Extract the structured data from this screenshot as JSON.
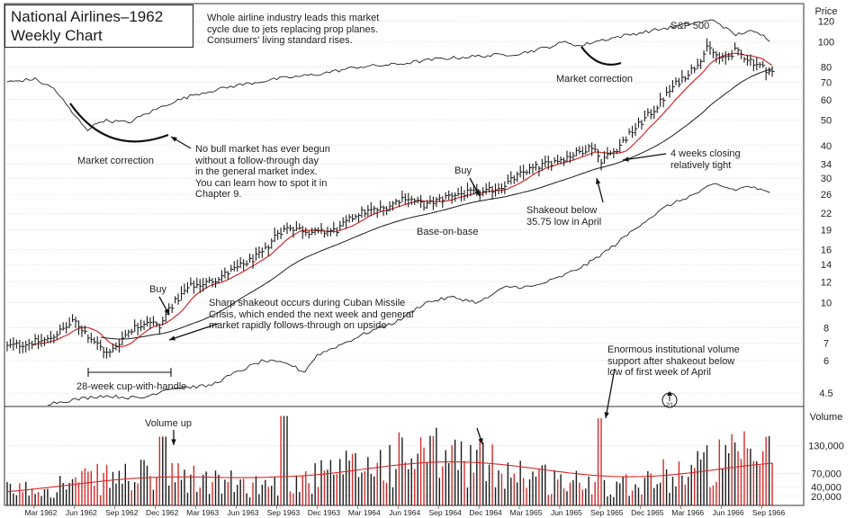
{
  "header": {
    "title_line1": "National Airlines–1962",
    "title_line2": "Weekly Chart"
  },
  "annotations": {
    "industry_note": [
      "Whole airline industry leads this market",
      "cycle due to jets replacing prop planes.",
      "Consumers' living standard rises."
    ],
    "sp500_label": "S&P 500",
    "market_correction_right": "Market correction",
    "market_correction_left": "Market correction",
    "follow_through_note": [
      "No bull market has ever begun",
      "without a follow-through day",
      "in the general market index.",
      "You can learn how to spot it in",
      "Chapter 9."
    ],
    "buy_1": "Buy",
    "buy_2": "Buy",
    "cuban_crisis_note": [
      "Sharp shakeout occurs during Cuban Missile",
      "Crisis, which ended the next week and general",
      "market rapidly follows-through on upside"
    ],
    "cup_with_handle": "28-week cup-with-handle",
    "base_on_base": "Base-on-base",
    "shakeout_note": [
      "Shakeout below",
      "35.75 low in April"
    ],
    "tight_note": [
      "4 weeks closing",
      "relatively tight"
    ],
    "volume_note": [
      "Enormous institutional volume",
      "support after shakeout below",
      "low of first week of April"
    ],
    "volume_up": "Volume up",
    "split_marker": "2/1"
  },
  "colors": {
    "price_bar": "#1a1a1a",
    "moving_avg_short": "#d42a2a",
    "moving_avg_long": "#1a1a1a",
    "volume_up": "#1a1a1a",
    "volume_down": "#d42a2a",
    "grid": "#9a9a9a"
  },
  "chart_data": {
    "type": "ohlc-with-volume",
    "title": "National Airlines–1962 Weekly Chart",
    "price_axis": {
      "label": "Price",
      "scale": "log",
      "range": [
        4,
        140
      ],
      "ticks": [
        120,
        100,
        80,
        70,
        60,
        50,
        40,
        34,
        30,
        26,
        22,
        19,
        16,
        14,
        12,
        10,
        8,
        7,
        6,
        4.5
      ]
    },
    "volume_axis": {
      "label": "Volume",
      "range": [
        0,
        200000
      ],
      "ticks": [
        130000,
        70000,
        40000,
        20000
      ],
      "tick_labels": [
        "130,000",
        "70,000",
        "40,000",
        "20,000"
      ]
    },
    "time_axis": {
      "range": [
        "Jan 1962",
        "Oct 1966"
      ],
      "ticks": [
        "Mar 1962",
        "Jun 1962",
        "Sep 1962",
        "Dec 1962",
        "Mar 1963",
        "Jun 1963",
        "Sep 1963",
        "Dec 1963",
        "Mar 1964",
        "Jun 1964",
        "Sep 1964",
        "Dec 1964",
        "Mar 1965",
        "Jun 1965",
        "Sep 1965",
        "Dec 1965",
        "Mar 1966",
        "Jun 1966",
        "Sep 1966"
      ]
    },
    "price_anchors": [
      {
        "month": 0,
        "price": 6.8
      },
      {
        "month": 3,
        "price": 7.2
      },
      {
        "month": 5,
        "price": 8.5
      },
      {
        "month": 6,
        "price": 7.5
      },
      {
        "month": 7.5,
        "price": 6.3
      },
      {
        "month": 9,
        "price": 7.8
      },
      {
        "month": 10.5,
        "price": 8.6
      },
      {
        "month": 11.3,
        "price": 8.0
      },
      {
        "month": 12,
        "price": 9.5
      },
      {
        "month": 13.5,
        "price": 11.5
      },
      {
        "month": 15,
        "price": 12.0
      },
      {
        "month": 17,
        "price": 13.5
      },
      {
        "month": 19,
        "price": 15.5
      },
      {
        "month": 20,
        "price": 18.5
      },
      {
        "month": 21,
        "price": 19.5
      },
      {
        "month": 23,
        "price": 18.5
      },
      {
        "month": 24.5,
        "price": 19.0
      },
      {
        "month": 26,
        "price": 22.0
      },
      {
        "month": 28,
        "price": 23.0
      },
      {
        "month": 29.5,
        "price": 25.5
      },
      {
        "month": 31,
        "price": 23.5
      },
      {
        "month": 33,
        "price": 26.0
      },
      {
        "month": 35.5,
        "price": 26.5
      },
      {
        "month": 37,
        "price": 28.5
      },
      {
        "month": 38.5,
        "price": 32.0
      },
      {
        "month": 40,
        "price": 34.0
      },
      {
        "month": 42,
        "price": 37.0
      },
      {
        "month": 43.5,
        "price": 40.0
      },
      {
        "month": 44,
        "price": 35.0
      },
      {
        "month": 45,
        "price": 38.0
      },
      {
        "month": 46.5,
        "price": 46.0
      },
      {
        "month": 48,
        "price": 55.0
      },
      {
        "month": 49.5,
        "price": 68.0
      },
      {
        "month": 51,
        "price": 80.0
      },
      {
        "month": 52,
        "price": 95.0
      },
      {
        "month": 53,
        "price": 85.0
      },
      {
        "month": 54,
        "price": 92.0
      },
      {
        "month": 55,
        "price": 86.0
      },
      {
        "month": 56,
        "price": 80.0
      },
      {
        "month": 56.8,
        "price": 76.0
      }
    ],
    "sp500_anchors": [
      {
        "month": 0,
        "price": 70
      },
      {
        "month": 2,
        "price": 72
      },
      {
        "month": 3.5,
        "price": 66
      },
      {
        "month": 5,
        "price": 52
      },
      {
        "month": 6,
        "price": 46
      },
      {
        "month": 7,
        "price": 50
      },
      {
        "month": 9,
        "price": 49
      },
      {
        "month": 10,
        "price": 52
      },
      {
        "month": 12,
        "price": 58
      },
      {
        "month": 14,
        "price": 63
      },
      {
        "month": 17,
        "price": 68
      },
      {
        "month": 20,
        "price": 72
      },
      {
        "month": 23,
        "price": 75
      },
      {
        "month": 26,
        "price": 80
      },
      {
        "month": 29,
        "price": 82
      },
      {
        "month": 32,
        "price": 86
      },
      {
        "month": 35,
        "price": 88
      },
      {
        "month": 38,
        "price": 90
      },
      {
        "month": 40,
        "price": 95
      },
      {
        "month": 41.5,
        "price": 100
      },
      {
        "month": 42.5,
        "price": 96
      },
      {
        "month": 43.5,
        "price": 100
      },
      {
        "month": 46,
        "price": 106
      },
      {
        "month": 49,
        "price": 113
      },
      {
        "month": 51,
        "price": 118
      },
      {
        "month": 52.5,
        "price": 121
      },
      {
        "month": 54,
        "price": 106
      },
      {
        "month": 55,
        "price": 110
      },
      {
        "month": 56,
        "price": 106
      },
      {
        "month": 56.8,
        "price": 100
      }
    ],
    "relative_strength_anchors": [
      {
        "month": 3,
        "price": 4.1
      },
      {
        "month": 7,
        "price": 4.4
      },
      {
        "month": 10,
        "price": 4.3
      },
      {
        "month": 12,
        "price": 4.7
      },
      {
        "month": 15,
        "price": 4.8
      },
      {
        "month": 17,
        "price": 5.4
      },
      {
        "month": 19,
        "price": 6.0
      },
      {
        "month": 21,
        "price": 5.8
      },
      {
        "month": 22,
        "price": 5.4
      },
      {
        "month": 23,
        "price": 6.3
      },
      {
        "month": 25,
        "price": 7.0
      },
      {
        "month": 27,
        "price": 7.8
      },
      {
        "month": 29,
        "price": 8.5
      },
      {
        "month": 31,
        "price": 10.0
      },
      {
        "month": 33,
        "price": 10.5
      },
      {
        "month": 35,
        "price": 10.0
      },
      {
        "month": 37,
        "price": 11.5
      },
      {
        "month": 39,
        "price": 11.5
      },
      {
        "month": 41,
        "price": 12.5
      },
      {
        "month": 43,
        "price": 14.0
      },
      {
        "month": 45,
        "price": 16.5
      },
      {
        "month": 47,
        "price": 20.0
      },
      {
        "month": 49,
        "price": 23.5
      },
      {
        "month": 51,
        "price": 26.0
      },
      {
        "month": 52.5,
        "price": 28.5
      },
      {
        "month": 54,
        "price": 27.0
      },
      {
        "month": 55,
        "price": 28.0
      },
      {
        "month": 56.8,
        "price": 26.0
      }
    ],
    "weeks": 247
  }
}
